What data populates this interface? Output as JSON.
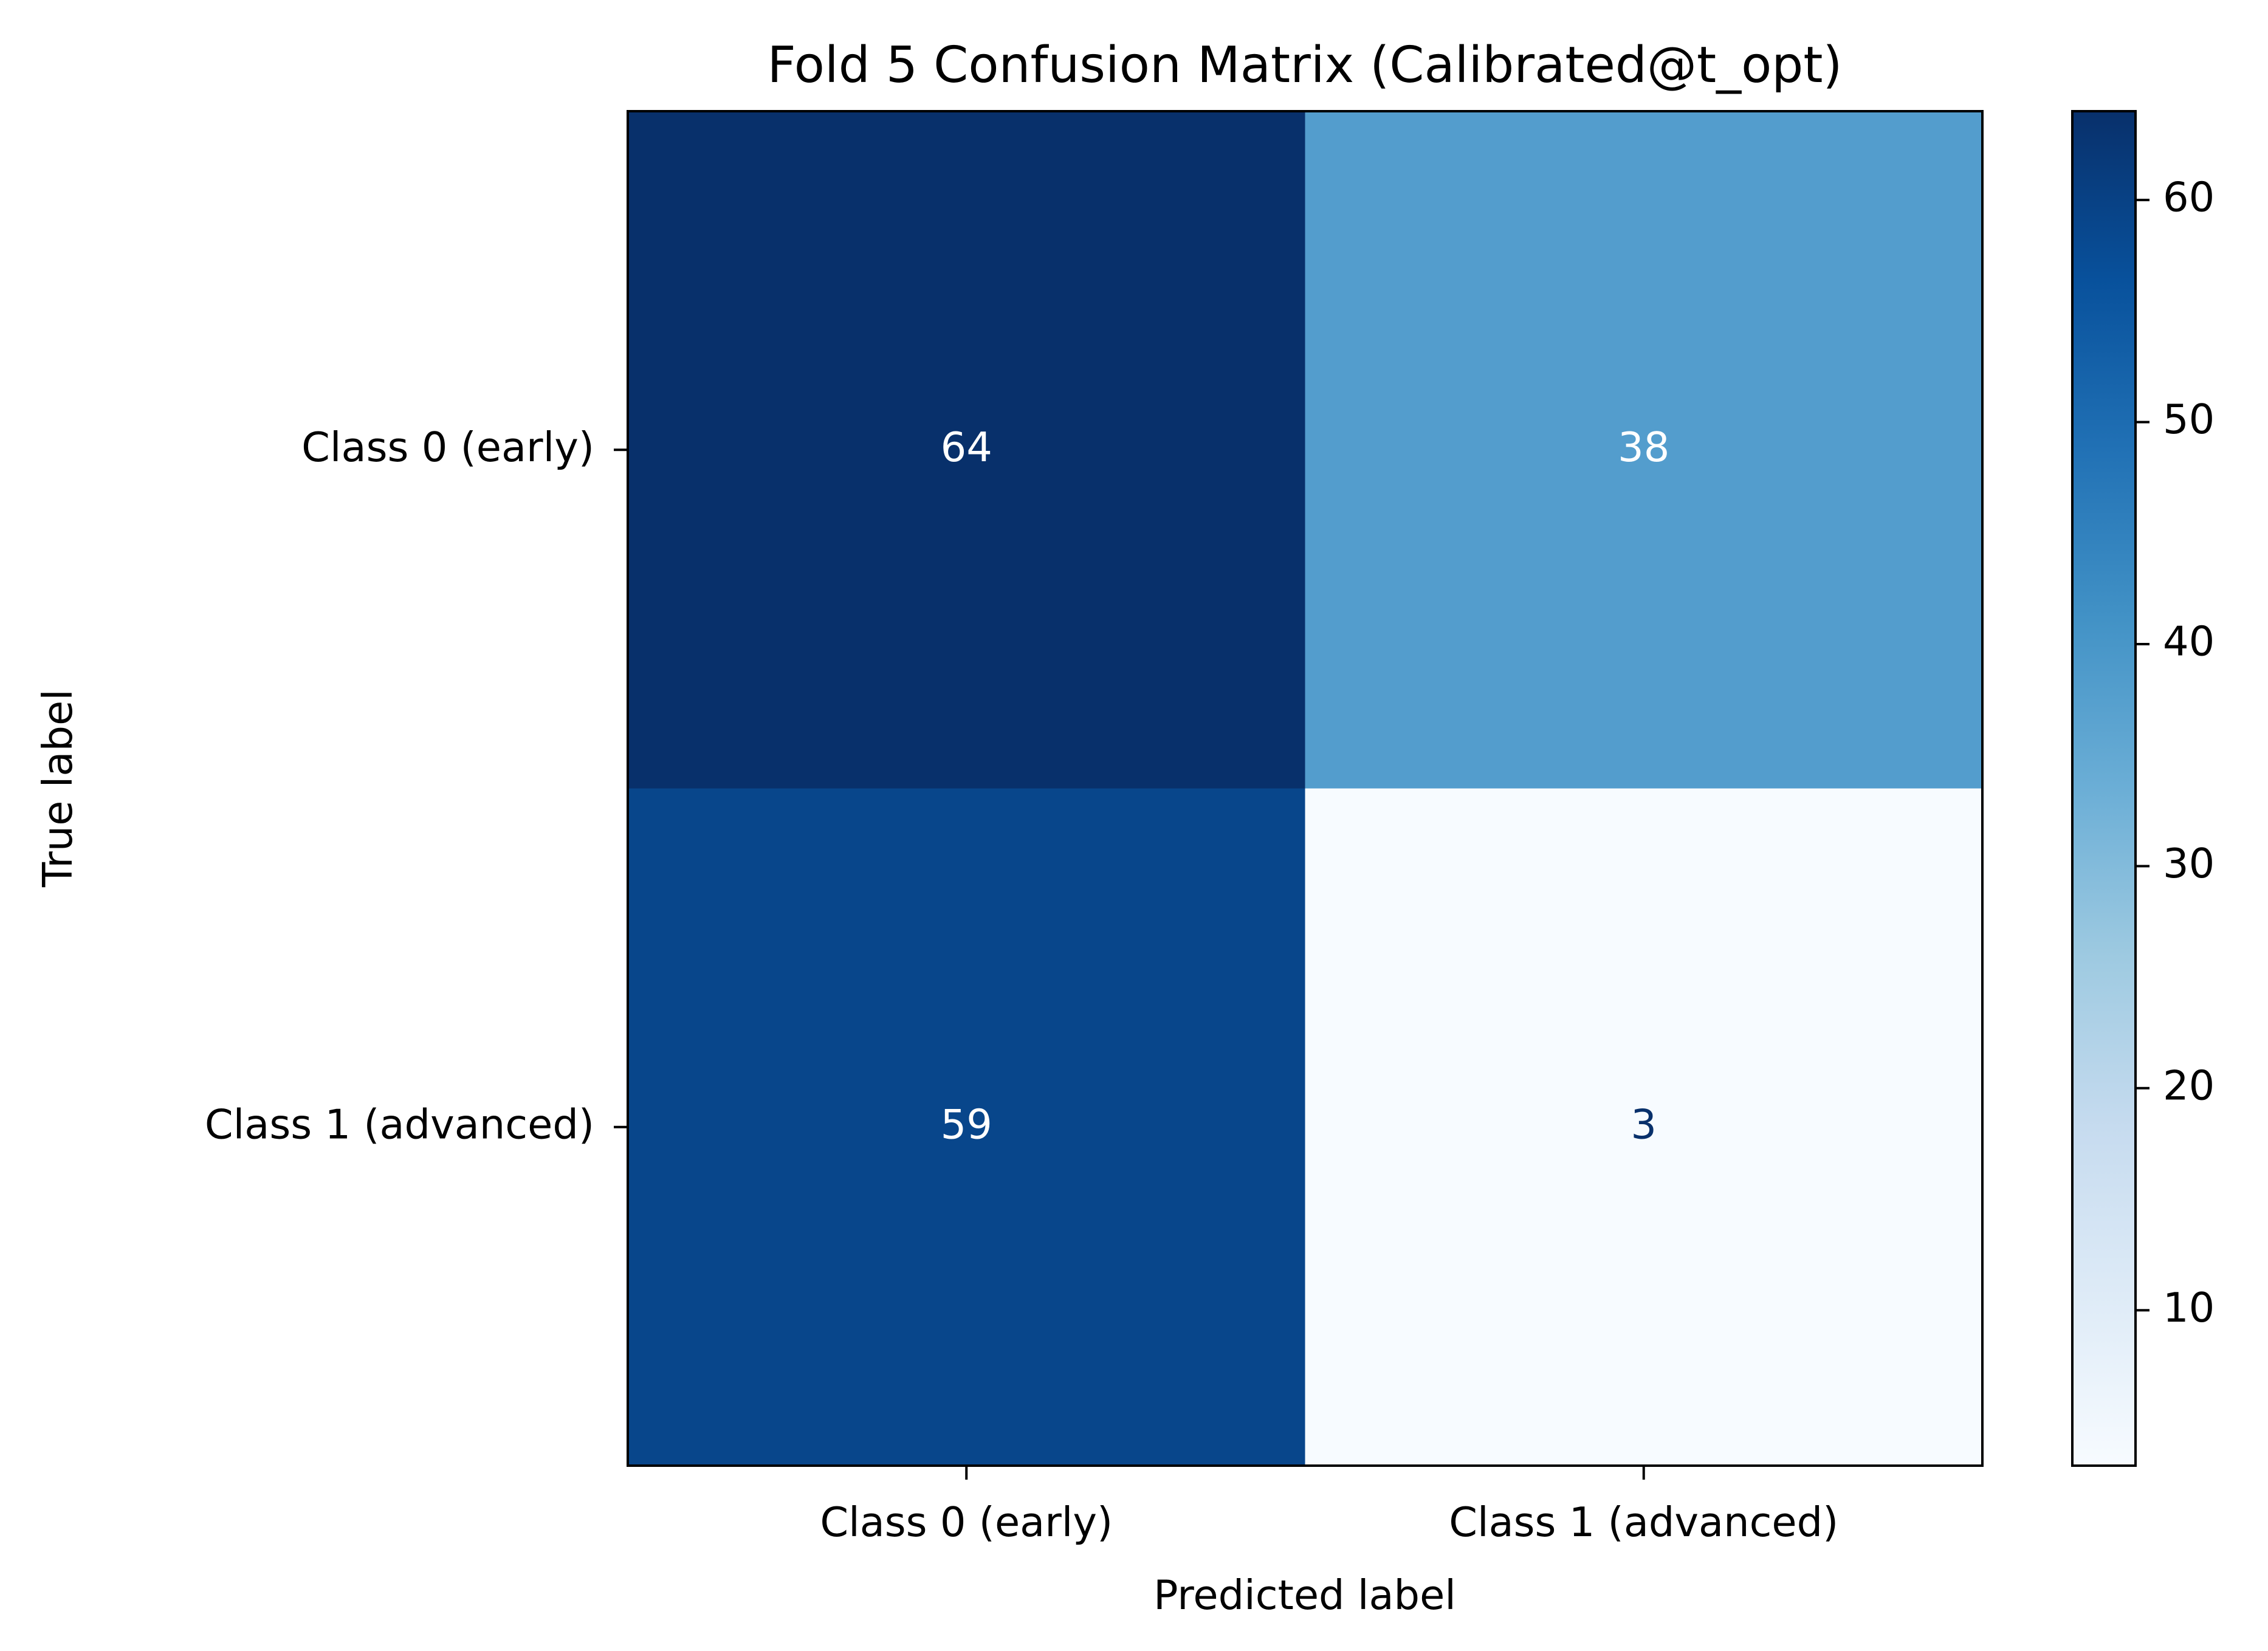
{
  "chart_data": {
    "type": "heatmap",
    "title": "Fold 5 Confusion Matrix (Calibrated@t_opt)",
    "xlabel": "Predicted label",
    "ylabel": "True label",
    "x_categories": [
      "Class 0 (early)",
      "Class 1 (advanced)"
    ],
    "y_categories": [
      "Class 0 (early)",
      "Class 1 (advanced)"
    ],
    "matrix": [
      [
        64,
        38
      ],
      [
        59,
        3
      ]
    ],
    "colormap": "Blues",
    "value_range": [
      3,
      64
    ],
    "colorbar_ticks": [
      10,
      20,
      30,
      40,
      50,
      60
    ],
    "colorbar_tick_labels": [
      "10",
      "20",
      "30",
      "40",
      "50",
      "60"
    ],
    "text_color_light": "#ffffff",
    "text_color_dark": "#08306b",
    "grid": false
  }
}
